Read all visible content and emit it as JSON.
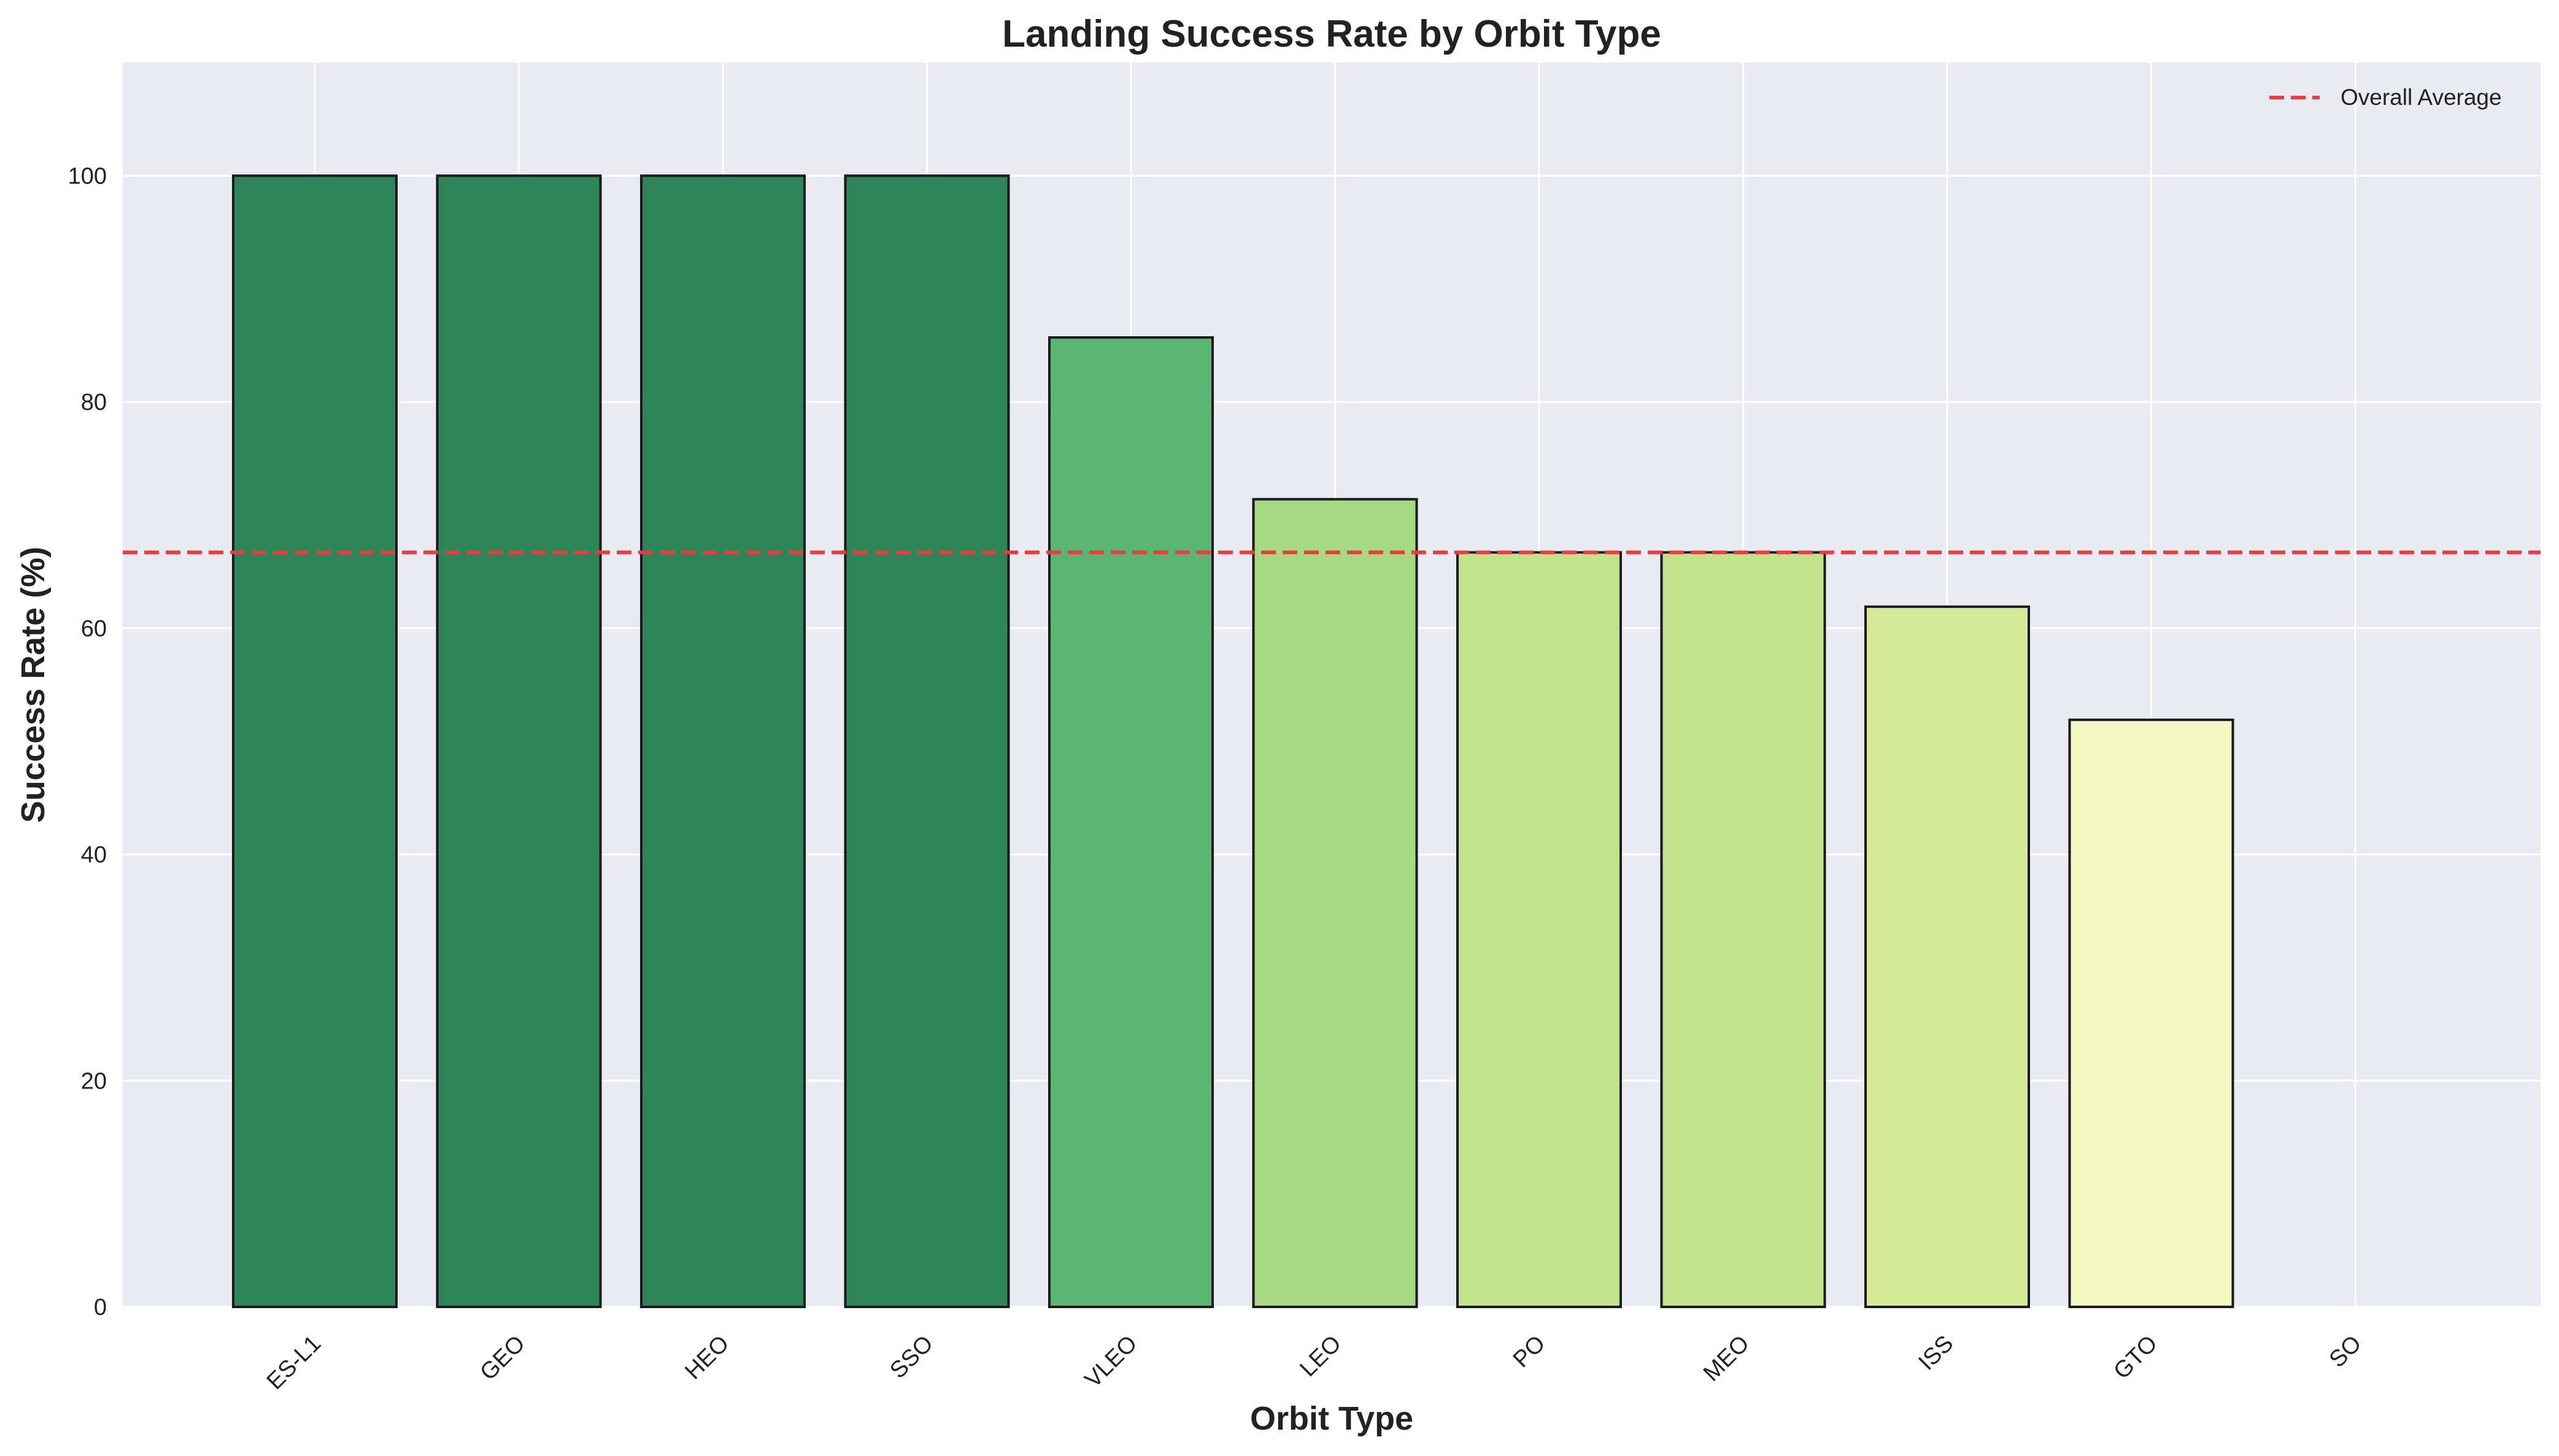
{
  "chart_data": {
    "type": "bar",
    "title": "Landing Success Rate by Orbit Type",
    "xlabel": "Orbit Type",
    "ylabel": "Success Rate (%)",
    "categories": [
      "ES-L1",
      "GEO",
      "HEO",
      "SSO",
      "VLEO",
      "LEO",
      "PO",
      "MEO",
      "ISS",
      "GTO",
      "SO"
    ],
    "values": [
      100,
      100,
      100,
      100,
      85.7,
      71.4,
      66.7,
      66.7,
      61.9,
      51.9,
      0
    ],
    "bar_colors": [
      "#2e855a",
      "#2e855a",
      "#2e855a",
      "#2e855a",
      "#5bb374",
      "#a9d884",
      "#c1e18c",
      "#c1e18c",
      "#d6e996",
      "#f3f7c2",
      "#2e855a"
    ],
    "ylim": [
      0,
      110
    ],
    "yticks": [
      0,
      20,
      40,
      60,
      80,
      100
    ],
    "grid": true,
    "reference_line": {
      "label": "Overall Average",
      "value": 66.7,
      "color": "#ee3b3b",
      "style": "dashed"
    },
    "legend": {
      "placement": "top-right",
      "entries": [
        "Overall Average"
      ]
    },
    "background_color": "#eaeaf2",
    "grid_color": "#ffffff"
  }
}
